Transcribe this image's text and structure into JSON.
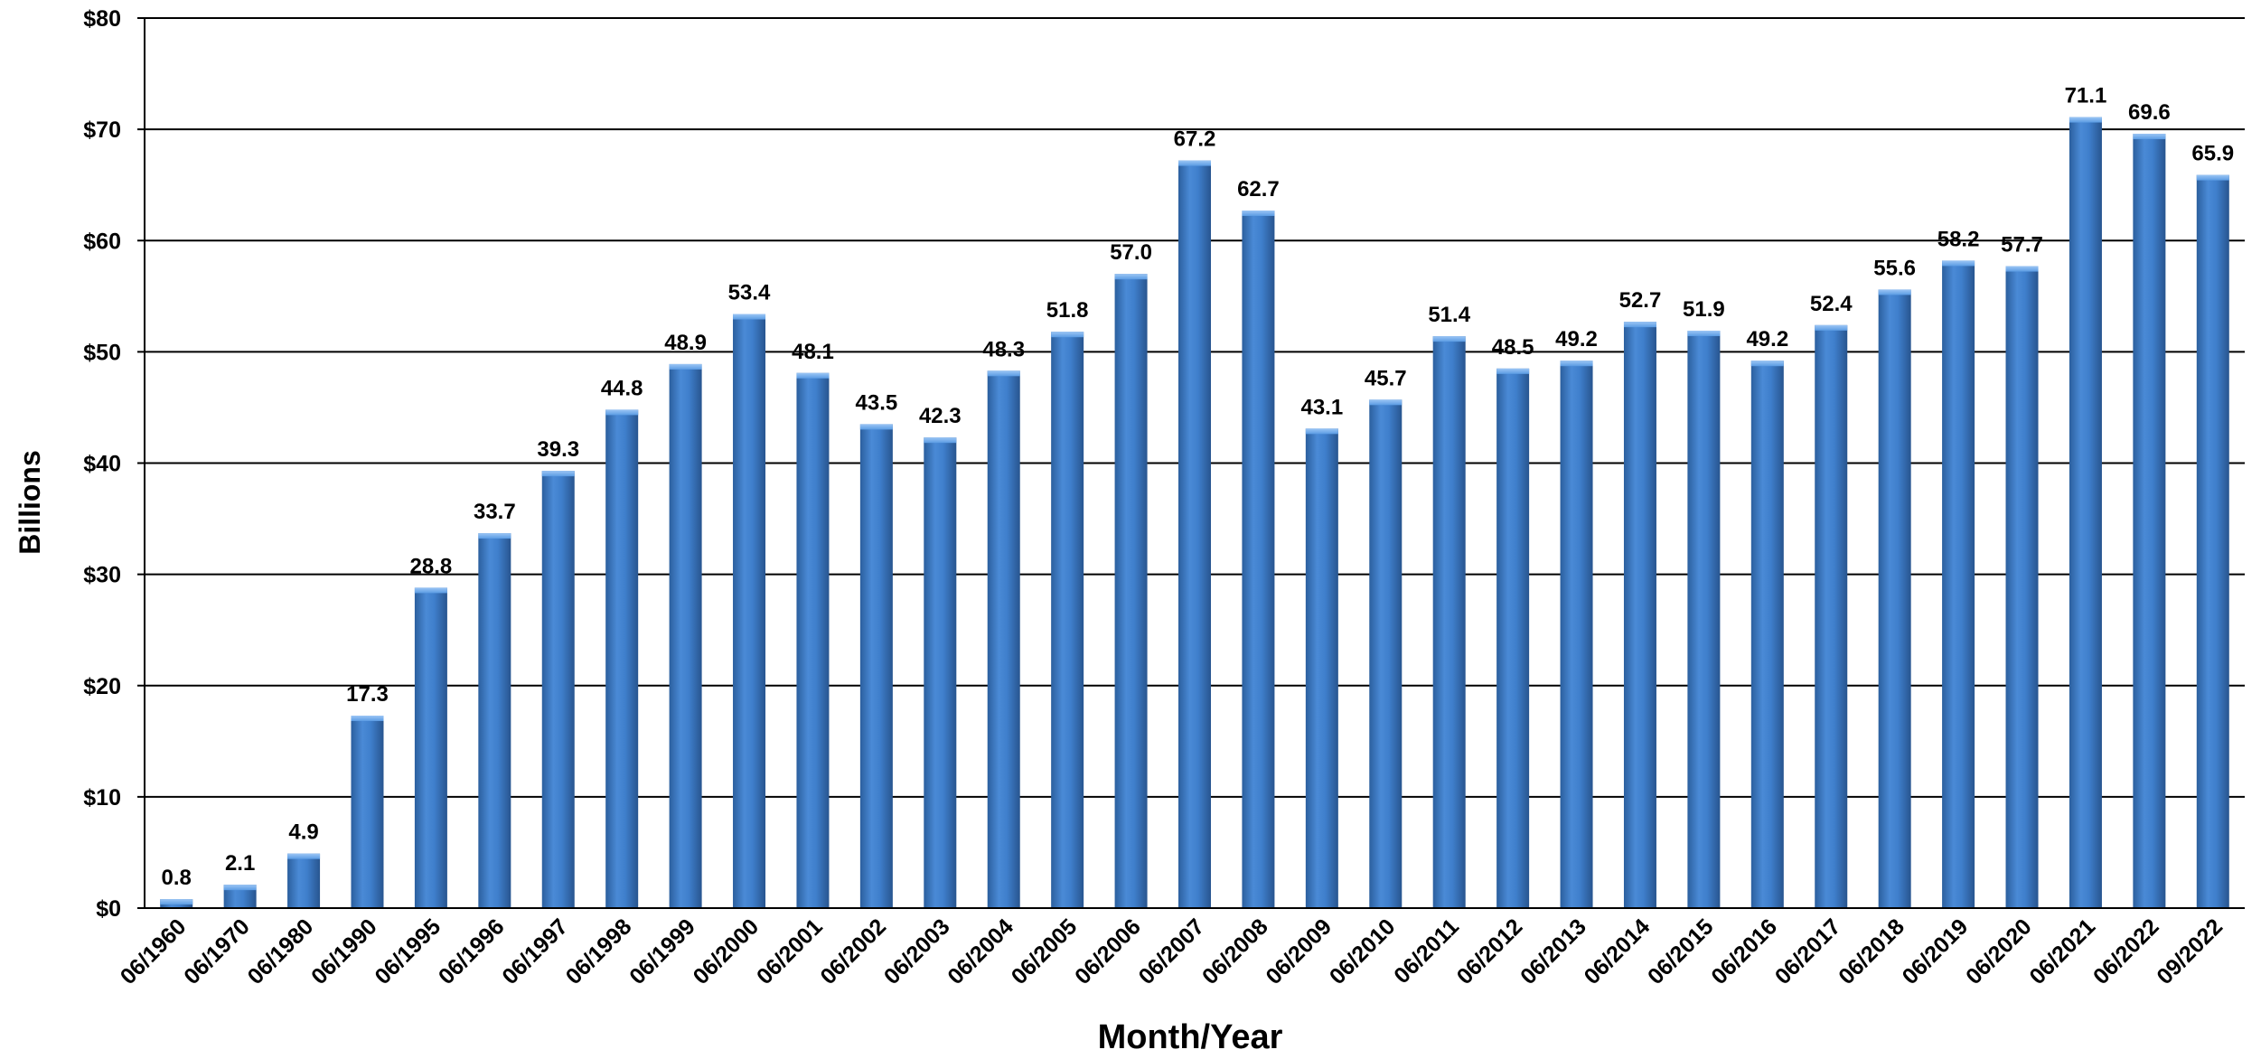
{
  "chart_data": {
    "type": "bar",
    "title": "",
    "xlabel": "Month/Year",
    "ylabel": "Billions",
    "ylim": [
      0,
      80
    ],
    "y_tick_labels": [
      "$0",
      "$10",
      "$20",
      "$30",
      "$40",
      "$50",
      "$60",
      "$70",
      "$80"
    ],
    "grid": true,
    "bar_color": "#3f7fcc",
    "categories": [
      "06/1960",
      "06/1970",
      "06/1980",
      "06/1990",
      "06/1995",
      "06/1996",
      "06/1997",
      "06/1998",
      "06/1999",
      "06/2000",
      "06/2001",
      "06/2002",
      "06/2003",
      "06/2004",
      "06/2005",
      "06/2006",
      "06/2007",
      "06/2008",
      "06/2009",
      "06/2010",
      "06/2011",
      "06/2012",
      "06/2013",
      "06/2014",
      "06/2015",
      "06/2016",
      "06/2017",
      "06/2018",
      "06/2019",
      "06/2020",
      "06/2021",
      "06/2022",
      "09/2022"
    ],
    "values": [
      0.8,
      2.1,
      4.9,
      17.3,
      28.8,
      33.7,
      39.3,
      44.8,
      48.9,
      53.4,
      48.1,
      43.5,
      42.3,
      48.3,
      51.8,
      57.0,
      67.2,
      62.7,
      43.1,
      45.7,
      51.4,
      48.5,
      49.2,
      52.7,
      51.9,
      49.2,
      52.4,
      55.6,
      58.2,
      57.7,
      71.1,
      69.6,
      65.9
    ],
    "value_labels": [
      "0.8",
      "2.1",
      "4.9",
      "17.3",
      "28.8",
      "33.7",
      "39.3",
      "44.8",
      "48.9",
      "53.4",
      "48.1",
      "43.5",
      "42.3",
      "48.3",
      "51.8",
      "57.0",
      "67.2",
      "62.7",
      "43.1",
      "45.7",
      "51.4",
      "48.5",
      "49.2",
      "52.7",
      "51.9",
      "49.2",
      "52.4",
      "55.6",
      "58.2",
      "57.7",
      "71.1",
      "69.6",
      "65.9"
    ]
  }
}
